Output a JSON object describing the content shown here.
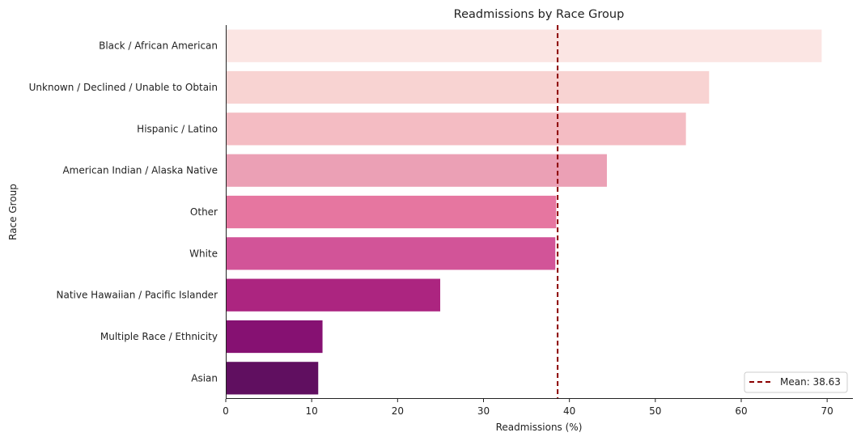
{
  "chart_data": {
    "type": "bar",
    "orientation": "horizontal",
    "title": "Readmissions by Race Group",
    "xlabel": "Readmissions (%)",
    "ylabel": "Race Group",
    "xlim": [
      0,
      73
    ],
    "xticks": [
      0,
      10,
      20,
      30,
      40,
      50,
      60,
      70
    ],
    "grid": false,
    "legend_position": "bottom-right",
    "categories": [
      "Black / African American",
      "Unknown / Declined / Unable to Obtain",
      "Hispanic / Latino",
      "American Indian / Alaska Native",
      "Other",
      "White",
      "Native Hawaiian / Pacific Islander",
      "Multiple Race / Ethnicity",
      "Asian"
    ],
    "values": [
      69.4,
      56.3,
      53.6,
      44.4,
      38.5,
      38.4,
      25.0,
      11.3,
      10.8
    ],
    "colors": [
      "#fbe5e3",
      "#f8d3d2",
      "#f4bcc3",
      "#eba0b5",
      "#e676a0",
      "#d25498",
      "#ac2580",
      "#861172",
      "#600f60"
    ],
    "mean_line": {
      "value": 38.63,
      "label": "Mean: 38.63",
      "color": "#8b0000"
    }
  }
}
